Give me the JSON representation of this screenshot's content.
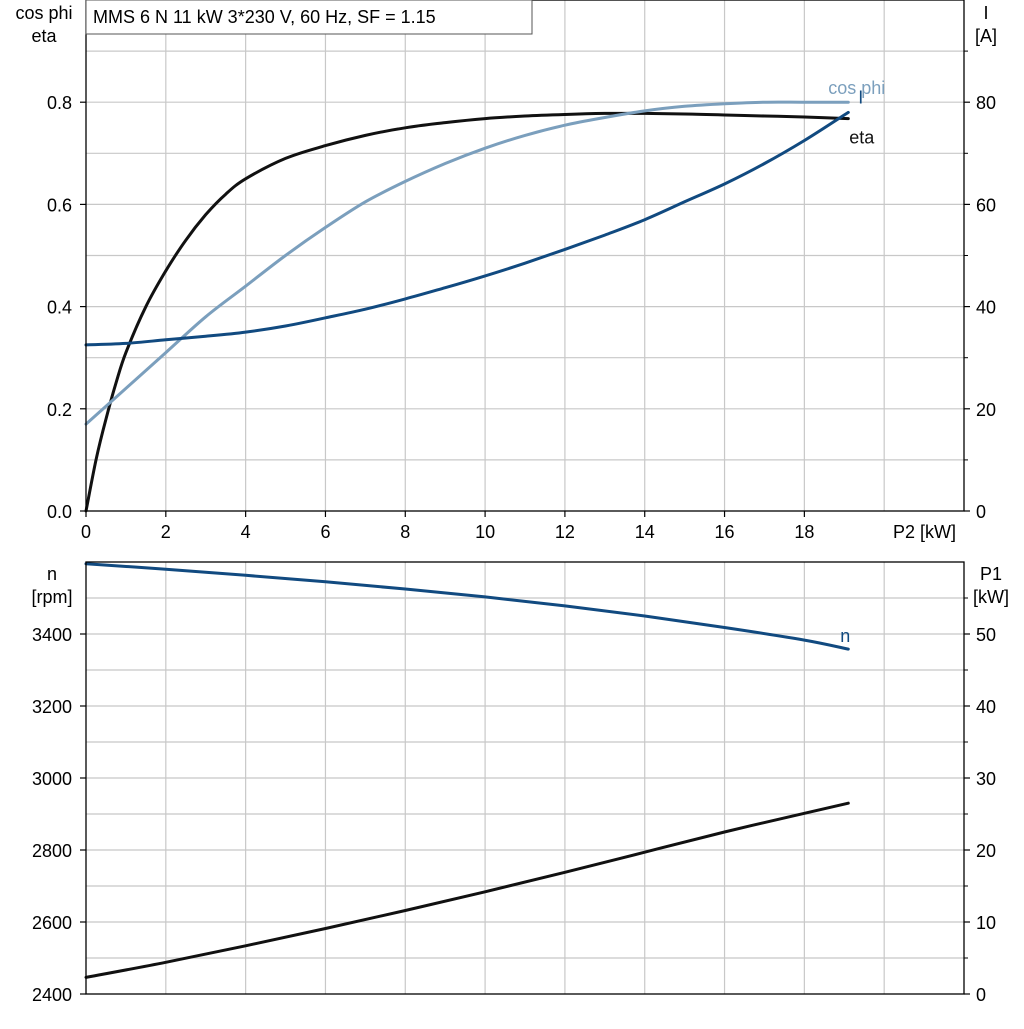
{
  "title_box": "MMS 6 N   11 kW   3*230 V, 60 Hz, SF = 1.15",
  "colors": {
    "eta": "#111111",
    "cos_phi": "#7b9fbd",
    "current": "#114a80",
    "speed": "#114a80",
    "p1": "#111111",
    "grid": "#c8c8c8"
  },
  "chart_data": [
    {
      "type": "line",
      "name": "top-chart",
      "title": "MMS 6 N   11 kW   3*230 V, 60 Hz, SF = 1.15",
      "xlabel": "P2 [kW]",
      "ylabel_left": [
        "cos phi",
        "eta"
      ],
      "ylabel_right": [
        "I",
        "[A]"
      ],
      "xlim": [
        0,
        22
      ],
      "ylim_left": [
        0,
        1.0
      ],
      "ylim_right": [
        0,
        100
      ],
      "x_ticks": [
        "0",
        "2",
        "4",
        "6",
        "8",
        "10",
        "12",
        "14",
        "16",
        "18"
      ],
      "y_left_ticks": [
        "0.0",
        "0.2",
        "0.4",
        "0.6",
        "0.8"
      ],
      "y_right_ticks": [
        "0",
        "20",
        "40",
        "60",
        "80"
      ],
      "grid": true,
      "series": [
        {
          "name": "eta",
          "axis": "left",
          "label": "eta",
          "x": [
            0,
            0.25,
            0.5,
            0.75,
            1,
            1.5,
            2,
            2.5,
            3,
            3.5,
            4,
            5,
            6,
            7,
            8,
            9,
            10,
            11,
            12,
            13,
            14,
            15,
            16,
            17,
            18,
            19.1
          ],
          "y": [
            0.0,
            0.1,
            0.18,
            0.25,
            0.31,
            0.4,
            0.47,
            0.53,
            0.58,
            0.62,
            0.65,
            0.69,
            0.715,
            0.735,
            0.75,
            0.76,
            0.768,
            0.773,
            0.776,
            0.778,
            0.778,
            0.777,
            0.775,
            0.773,
            0.771,
            0.768
          ]
        },
        {
          "name": "cos phi",
          "axis": "left",
          "label": "cos phi",
          "x": [
            0,
            1,
            2,
            3,
            4,
            5,
            6,
            7,
            8,
            9,
            10,
            11,
            12,
            13,
            14,
            15,
            16,
            17,
            18,
            19.1
          ],
          "y": [
            0.17,
            0.24,
            0.31,
            0.38,
            0.44,
            0.5,
            0.555,
            0.605,
            0.645,
            0.68,
            0.71,
            0.735,
            0.755,
            0.77,
            0.783,
            0.792,
            0.797,
            0.8,
            0.8,
            0.8
          ]
        },
        {
          "name": "I",
          "axis": "right",
          "label": "I",
          "x": [
            0,
            1,
            2,
            3,
            4,
            5,
            6,
            7,
            8,
            9,
            10,
            11,
            12,
            13,
            14,
            15,
            16,
            17,
            18,
            19.1
          ],
          "y": [
            32.5,
            32.8,
            33.5,
            34.2,
            35.0,
            36.2,
            37.8,
            39.5,
            41.5,
            43.7,
            46.0,
            48.5,
            51.2,
            54.0,
            57.0,
            60.5,
            64.0,
            68.0,
            72.5,
            78.0
          ]
        }
      ]
    },
    {
      "type": "line",
      "name": "bottom-chart",
      "xlabel": "",
      "ylabel_left": [
        "n",
        "[rpm]"
      ],
      "ylabel_right": [
        "P1",
        "[kW]"
      ],
      "xlim": [
        0,
        22
      ],
      "ylim_left": [
        2400,
        3600
      ],
      "ylim_right": [
        0,
        60
      ],
      "y_left_ticks": [
        "2400",
        "2600",
        "2800",
        "3000",
        "3200",
        "3400"
      ],
      "y_right_ticks": [
        "0",
        "10",
        "20",
        "30",
        "40",
        "50"
      ],
      "grid": true,
      "series": [
        {
          "name": "n",
          "axis": "left",
          "label": "n",
          "x": [
            0,
            2,
            4,
            6,
            8,
            10,
            12,
            14,
            16,
            18,
            19.1
          ],
          "y": [
            3595,
            3580,
            3563,
            3545,
            3525,
            3503,
            3478,
            3450,
            3418,
            3383,
            3358
          ]
        },
        {
          "name": "P1",
          "axis": "right",
          "label": "",
          "x": [
            0,
            2,
            4,
            6,
            8,
            10,
            12,
            14,
            16,
            18,
            19.1
          ],
          "y": [
            2.3,
            4.4,
            6.7,
            9.1,
            11.6,
            14.2,
            16.9,
            19.7,
            22.5,
            25.1,
            26.5
          ]
        }
      ]
    }
  ]
}
